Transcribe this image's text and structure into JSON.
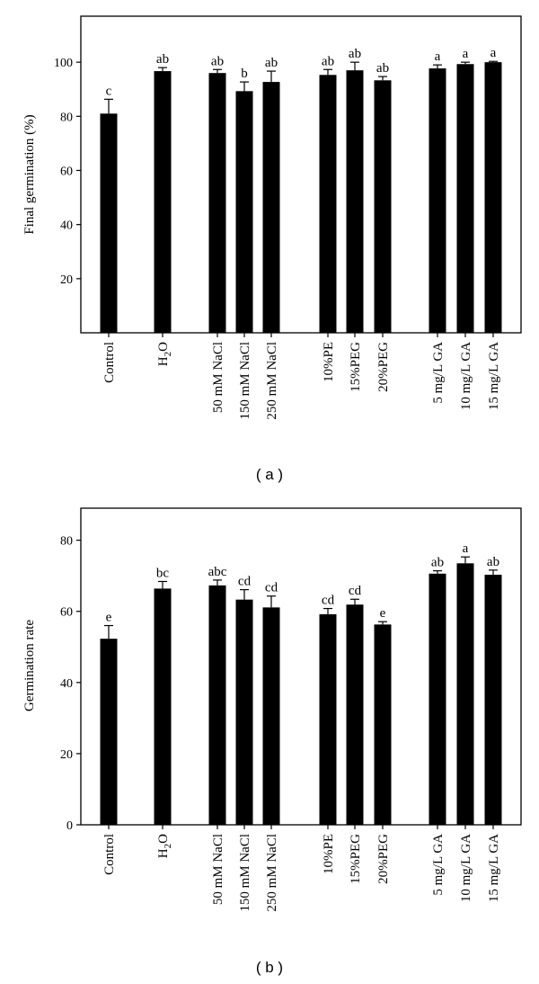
{
  "chart_data": [
    {
      "type": "bar",
      "panel": "(a)",
      "ylabel": "Final germination (%)",
      "xlabel": "",
      "ylim": [
        0,
        117
      ],
      "yticks": [
        20,
        40,
        60,
        80,
        100
      ],
      "categories": [
        "Control",
        "H2O",
        "50 mM NaCl",
        "150 mM NaCl",
        "250 mM NaCl",
        "10%PE",
        "15%PEG",
        "20%PEG",
        "5 mg/L GA",
        "10 mg/L GA",
        "15 mg/L GA"
      ],
      "groups": [
        0,
        1,
        2,
        2,
        2,
        3,
        3,
        3,
        4,
        4,
        4
      ],
      "values": [
        81,
        96.7,
        96,
        89.3,
        92.7,
        95.3,
        97,
        93.3,
        97.7,
        99.3,
        100
      ],
      "errors": [
        5.3,
        1.3,
        1.3,
        3.4,
        4,
        2,
        3,
        1.4,
        1.3,
        0.7,
        0.3
      ],
      "letters": [
        "c",
        "ab",
        "ab",
        "b",
        "ab",
        "ab",
        "ab",
        "ab",
        "a",
        "a",
        "a"
      ]
    },
    {
      "type": "bar",
      "panel": "(b)",
      "ylabel": "Germination rate",
      "xlabel": "",
      "ylim": [
        0,
        89
      ],
      "yticks": [
        0,
        20,
        40,
        60,
        80
      ],
      "categories": [
        "Control",
        "H2O",
        "50 mM NaCl",
        "150 mM NaCl",
        "250 mM NaCl",
        "10%PE",
        "15%PEG",
        "20%PEG",
        "5 mg/L GA",
        "10 mg/L GA",
        "15 mg/L GA"
      ],
      "groups": [
        0,
        1,
        2,
        2,
        2,
        3,
        3,
        3,
        4,
        4,
        4
      ],
      "values": [
        52.3,
        66.4,
        67.3,
        63.3,
        61.1,
        59.2,
        61.9,
        56.3,
        70.6,
        73.5,
        70.3
      ],
      "errors": [
        3.7,
        2,
        1.5,
        2.8,
        3.2,
        1.6,
        1.5,
        0.8,
        0.8,
        1.8,
        1.3
      ],
      "letters": [
        "e",
        "bc",
        "abc",
        "cd",
        "cd",
        "cd",
        "cd",
        "e",
        "ab",
        "a",
        "ab"
      ]
    }
  ],
  "colors": {
    "bar": "#000000",
    "axis": "#000000",
    "background": "#ffffff"
  },
  "captions": {
    "a": "( a )",
    "b": "( b )"
  }
}
